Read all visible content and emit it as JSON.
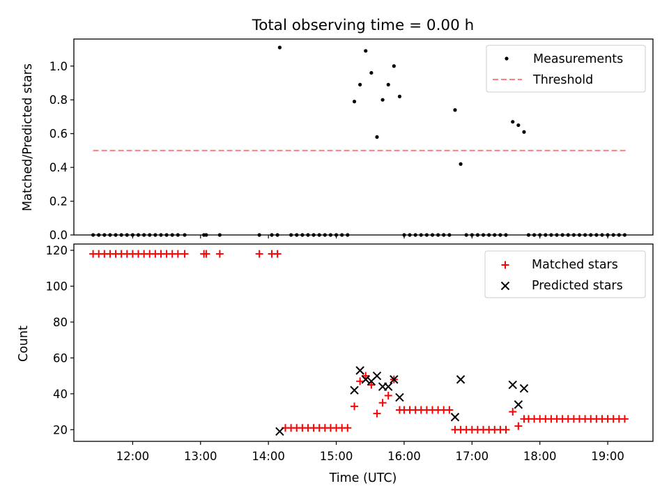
{
  "chart_data": [
    {
      "type": "scatter",
      "title": "Total observing time = 0.00 h",
      "xlabel": "",
      "ylabel": "Matched/Predicted stars",
      "xlim": [
        "11:08",
        "19:40"
      ],
      "ylim": [
        0,
        1.16
      ],
      "yticks": [
        0.0,
        0.2,
        0.4,
        0.6,
        0.8,
        1.0
      ],
      "ytick_labels": [
        "0.0",
        "0.2",
        "0.4",
        "0.6",
        "0.8",
        "1.0"
      ],
      "legend": {
        "position": "top-right",
        "entries": [
          "Measurements",
          "Threshold"
        ]
      },
      "grid": false,
      "threshold": {
        "name": "Threshold",
        "value": 0.5,
        "x_start": "11:25",
        "x_end": "19:17",
        "color": "#ff7f7f"
      },
      "measurement_color": "#000000",
      "measurements": [
        [
          "11:25",
          0
        ],
        [
          "11:30",
          0
        ],
        [
          "11:35",
          0
        ],
        [
          "11:40",
          0
        ],
        [
          "11:45",
          0
        ],
        [
          "11:50",
          0
        ],
        [
          "11:55",
          0
        ],
        [
          "12:00",
          0
        ],
        [
          "12:05",
          0
        ],
        [
          "12:10",
          0
        ],
        [
          "12:15",
          0
        ],
        [
          "12:20",
          0
        ],
        [
          "12:25",
          0
        ],
        [
          "12:30",
          0
        ],
        [
          "12:35",
          0
        ],
        [
          "12:40",
          0
        ],
        [
          "12:46",
          0
        ],
        [
          "13:03",
          0
        ],
        [
          "13:05",
          0
        ],
        [
          "13:17",
          0
        ],
        [
          "13:52",
          0
        ],
        [
          "14:03",
          0
        ],
        [
          "14:08",
          0
        ],
        [
          "14:10",
          1.11
        ],
        [
          "14:20",
          0
        ],
        [
          "14:25",
          0
        ],
        [
          "14:30",
          0
        ],
        [
          "14:35",
          0
        ],
        [
          "14:40",
          0
        ],
        [
          "14:45",
          0
        ],
        [
          "14:50",
          0
        ],
        [
          "14:55",
          0
        ],
        [
          "15:00",
          0
        ],
        [
          "15:05",
          0
        ],
        [
          "15:10",
          0
        ],
        [
          "15:16",
          0.79
        ],
        [
          "15:21",
          0.89
        ],
        [
          "15:26",
          1.09
        ],
        [
          "15:31",
          0.96
        ],
        [
          "15:36",
          0.58
        ],
        [
          "15:41",
          0.8
        ],
        [
          "15:46",
          0.89
        ],
        [
          "15:51",
          1.0
        ],
        [
          "15:56",
          0.82
        ],
        [
          "16:00",
          0
        ],
        [
          "16:05",
          0
        ],
        [
          "16:10",
          0
        ],
        [
          "16:15",
          0
        ],
        [
          "16:20",
          0
        ],
        [
          "16:25",
          0
        ],
        [
          "16:30",
          0
        ],
        [
          "16:35",
          0
        ],
        [
          "16:40",
          0
        ],
        [
          "16:45",
          0.74
        ],
        [
          "16:50",
          0.42
        ],
        [
          "16:55",
          0
        ],
        [
          "17:00",
          0
        ],
        [
          "17:05",
          0
        ],
        [
          "17:10",
          0
        ],
        [
          "17:15",
          0
        ],
        [
          "17:20",
          0
        ],
        [
          "17:25",
          0
        ],
        [
          "17:30",
          0
        ],
        [
          "17:36",
          0.67
        ],
        [
          "17:41",
          0.65
        ],
        [
          "17:46",
          0.61
        ],
        [
          "17:50",
          0
        ],
        [
          "17:55",
          0
        ],
        [
          "18:00",
          0
        ],
        [
          "18:05",
          0
        ],
        [
          "18:10",
          0
        ],
        [
          "18:15",
          0
        ],
        [
          "18:20",
          0
        ],
        [
          "18:25",
          0
        ],
        [
          "18:30",
          0
        ],
        [
          "18:35",
          0
        ],
        [
          "18:40",
          0
        ],
        [
          "18:45",
          0
        ],
        [
          "18:50",
          0
        ],
        [
          "18:55",
          0
        ],
        [
          "19:00",
          0
        ],
        [
          "19:05",
          0
        ],
        [
          "19:10",
          0
        ],
        [
          "19:15",
          0
        ]
      ]
    },
    {
      "type": "scatter",
      "xlabel": "Time (UTC)",
      "ylabel": "Count",
      "xlim": [
        "11:08",
        "19:40"
      ],
      "ylim": [
        13.5,
        123.5
      ],
      "xticks": [
        "12:00",
        "13:00",
        "14:00",
        "15:00",
        "16:00",
        "17:00",
        "18:00",
        "19:00"
      ],
      "xtick_labels": [
        "12:00",
        "13:00",
        "14:00",
        "15:00",
        "16:00",
        "17:00",
        "18:00",
        "19:00"
      ],
      "yticks": [
        20,
        40,
        60,
        80,
        100,
        120
      ],
      "ytick_labels": [
        "20",
        "40",
        "60",
        "80",
        "100",
        "120"
      ],
      "legend": {
        "position": "top-right",
        "entries": [
          "Matched stars",
          "Predicted stars"
        ]
      },
      "grid": false,
      "matched_color": "#ff0000",
      "predicted_color": "#000000",
      "matched": [
        [
          "11:25",
          118
        ],
        [
          "11:30",
          118
        ],
        [
          "11:35",
          118
        ],
        [
          "11:40",
          118
        ],
        [
          "11:45",
          118
        ],
        [
          "11:50",
          118
        ],
        [
          "11:55",
          118
        ],
        [
          "12:00",
          118
        ],
        [
          "12:05",
          118
        ],
        [
          "12:10",
          118
        ],
        [
          "12:15",
          118
        ],
        [
          "12:20",
          118
        ],
        [
          "12:25",
          118
        ],
        [
          "12:30",
          118
        ],
        [
          "12:35",
          118
        ],
        [
          "12:40",
          118
        ],
        [
          "12:46",
          118
        ],
        [
          "13:03",
          118
        ],
        [
          "13:05",
          118
        ],
        [
          "13:17",
          118
        ],
        [
          "13:52",
          118
        ],
        [
          "14:03",
          118
        ],
        [
          "14:08",
          118
        ],
        [
          "14:15",
          21
        ],
        [
          "14:20",
          21
        ],
        [
          "14:25",
          21
        ],
        [
          "14:30",
          21
        ],
        [
          "14:35",
          21
        ],
        [
          "14:40",
          21
        ],
        [
          "14:45",
          21
        ],
        [
          "14:50",
          21
        ],
        [
          "14:55",
          21
        ],
        [
          "15:00",
          21
        ],
        [
          "15:05",
          21
        ],
        [
          "15:10",
          21
        ],
        [
          "15:16",
          33
        ],
        [
          "15:21",
          47
        ],
        [
          "15:26",
          50
        ],
        [
          "15:31",
          45
        ],
        [
          "15:36",
          29
        ],
        [
          "15:41",
          35
        ],
        [
          "15:46",
          39
        ],
        [
          "15:51",
          48
        ],
        [
          "15:56",
          31
        ],
        [
          "16:00",
          31
        ],
        [
          "16:05",
          31
        ],
        [
          "16:10",
          31
        ],
        [
          "16:15",
          31
        ],
        [
          "16:20",
          31
        ],
        [
          "16:25",
          31
        ],
        [
          "16:30",
          31
        ],
        [
          "16:35",
          31
        ],
        [
          "16:40",
          31
        ],
        [
          "16:45",
          20
        ],
        [
          "16:50",
          20
        ],
        [
          "16:55",
          20
        ],
        [
          "17:00",
          20
        ],
        [
          "17:05",
          20
        ],
        [
          "17:10",
          20
        ],
        [
          "17:15",
          20
        ],
        [
          "17:20",
          20
        ],
        [
          "17:25",
          20
        ],
        [
          "17:30",
          20
        ],
        [
          "17:36",
          30
        ],
        [
          "17:41",
          22
        ],
        [
          "17:46",
          26
        ],
        [
          "17:50",
          26
        ],
        [
          "17:55",
          26
        ],
        [
          "18:00",
          26
        ],
        [
          "18:05",
          26
        ],
        [
          "18:10",
          26
        ],
        [
          "18:15",
          26
        ],
        [
          "18:20",
          26
        ],
        [
          "18:25",
          26
        ],
        [
          "18:30",
          26
        ],
        [
          "18:35",
          26
        ],
        [
          "18:40",
          26
        ],
        [
          "18:45",
          26
        ],
        [
          "18:50",
          26
        ],
        [
          "18:55",
          26
        ],
        [
          "19:00",
          26
        ],
        [
          "19:05",
          26
        ],
        [
          "19:10",
          26
        ],
        [
          "19:15",
          26
        ]
      ],
      "predicted": [
        [
          "14:10",
          19
        ],
        [
          "15:16",
          42
        ],
        [
          "15:21",
          53
        ],
        [
          "15:26",
          48
        ],
        [
          "15:31",
          47
        ],
        [
          "15:36",
          50
        ],
        [
          "15:41",
          44
        ],
        [
          "15:46",
          44
        ],
        [
          "15:51",
          48
        ],
        [
          "15:56",
          38
        ],
        [
          "16:45",
          27
        ],
        [
          "16:50",
          48
        ],
        [
          "17:36",
          45
        ],
        [
          "17:41",
          34
        ],
        [
          "17:46",
          43
        ]
      ]
    }
  ]
}
